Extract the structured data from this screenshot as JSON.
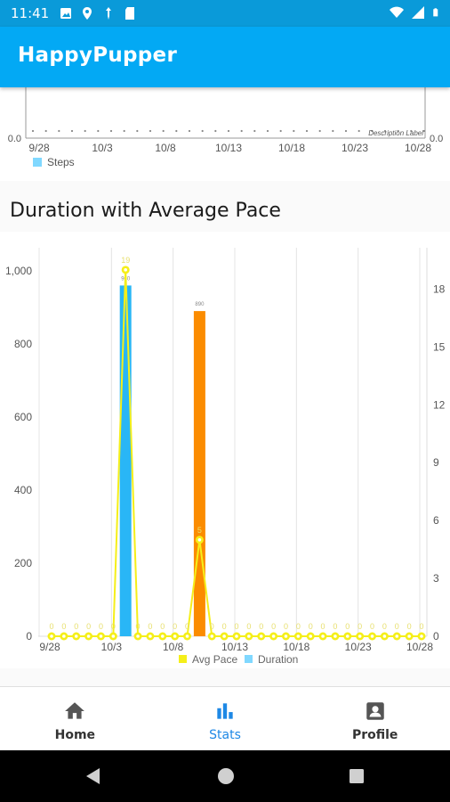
{
  "status_bar": {
    "time": "11:41"
  },
  "app": {
    "title": "HappyPupper"
  },
  "steps_chart": {
    "left_axis_min": "0.0",
    "right_axis_min": "0.0",
    "x_ticks": [
      "9/28",
      "10/3",
      "10/8",
      "10/13",
      "10/18",
      "10/23",
      "10/28"
    ],
    "description": "Description Label",
    "legend": "Steps",
    "legend_color": "#80d8ff"
  },
  "duration_section": {
    "title": "Duration with Average Pace"
  },
  "chart_data": {
    "type": "bar",
    "title": "Duration with Average Pace",
    "x": [
      "9/28",
      "9/29",
      "9/30",
      "10/1",
      "10/2",
      "10/3",
      "10/4",
      "10/5",
      "10/6",
      "10/7",
      "10/8",
      "10/9",
      "10/10",
      "10/11",
      "10/12",
      "10/13",
      "10/14",
      "10/15",
      "10/16",
      "10/17",
      "10/18",
      "10/19",
      "10/20",
      "10/21",
      "10/22",
      "10/23",
      "10/24",
      "10/25",
      "10/26",
      "10/27",
      "10/28"
    ],
    "x_ticks": [
      "9/28",
      "10/3",
      "10/8",
      "10/13",
      "10/18",
      "10/23",
      "10/28"
    ],
    "y_left_ticks": [
      "0",
      "200",
      "400",
      "600",
      "800",
      "1,000"
    ],
    "y_left_range": [
      0,
      1000
    ],
    "y_right_ticks": [
      "0",
      "3",
      "6",
      "9",
      "12",
      "15",
      "18"
    ],
    "y_right_range": [
      0,
      19.5
    ],
    "series": [
      {
        "name": "Duration",
        "type": "bar",
        "axis": "left",
        "values": [
          0,
          0,
          0,
          0,
          0,
          0,
          960,
          0,
          0,
          0,
          0,
          0,
          890,
          0,
          0,
          0,
          0,
          0,
          0,
          0,
          0,
          0,
          0,
          0,
          0,
          0,
          0,
          0,
          0,
          0,
          0
        ],
        "colors": [
          "#29b6f6",
          "#29b6f6",
          "#29b6f6",
          "#29b6f6",
          "#29b6f6",
          "#29b6f6",
          "#29b6f6",
          "#29b6f6",
          "#29b6f6",
          "#29b6f6",
          "#29b6f6",
          "#29b6f6",
          "#fb8c00",
          "#29b6f6",
          "#29b6f6",
          "#29b6f6",
          "#29b6f6",
          "#29b6f6",
          "#29b6f6",
          "#29b6f6",
          "#29b6f6",
          "#29b6f6",
          "#29b6f6",
          "#29b6f6",
          "#29b6f6",
          "#29b6f6",
          "#29b6f6",
          "#29b6f6",
          "#29b6f6",
          "#29b6f6",
          "#29b6f6"
        ]
      },
      {
        "name": "Avg Pace",
        "type": "line",
        "axis": "right",
        "color": "#f5ef1a",
        "values": [
          0,
          0,
          0,
          0,
          0,
          0,
          19,
          0,
          0,
          0,
          0,
          0,
          5,
          0,
          0,
          0,
          0,
          0,
          0,
          0,
          0,
          0,
          0,
          0,
          0,
          0,
          0,
          0,
          0,
          0,
          0
        ]
      }
    ],
    "legend": [
      "Avg Pace",
      "Duration"
    ],
    "legend_placement": "bottom-center",
    "grid": true
  },
  "bottom_nav": {
    "items": [
      {
        "label": "Home",
        "icon": "home-icon"
      },
      {
        "label": "Stats",
        "icon": "bar-chart-icon"
      },
      {
        "label": "Profile",
        "icon": "account-box-icon"
      }
    ]
  },
  "system_nav": {
    "buttons": [
      "back-icon",
      "home-circle-icon",
      "recents-icon"
    ]
  }
}
